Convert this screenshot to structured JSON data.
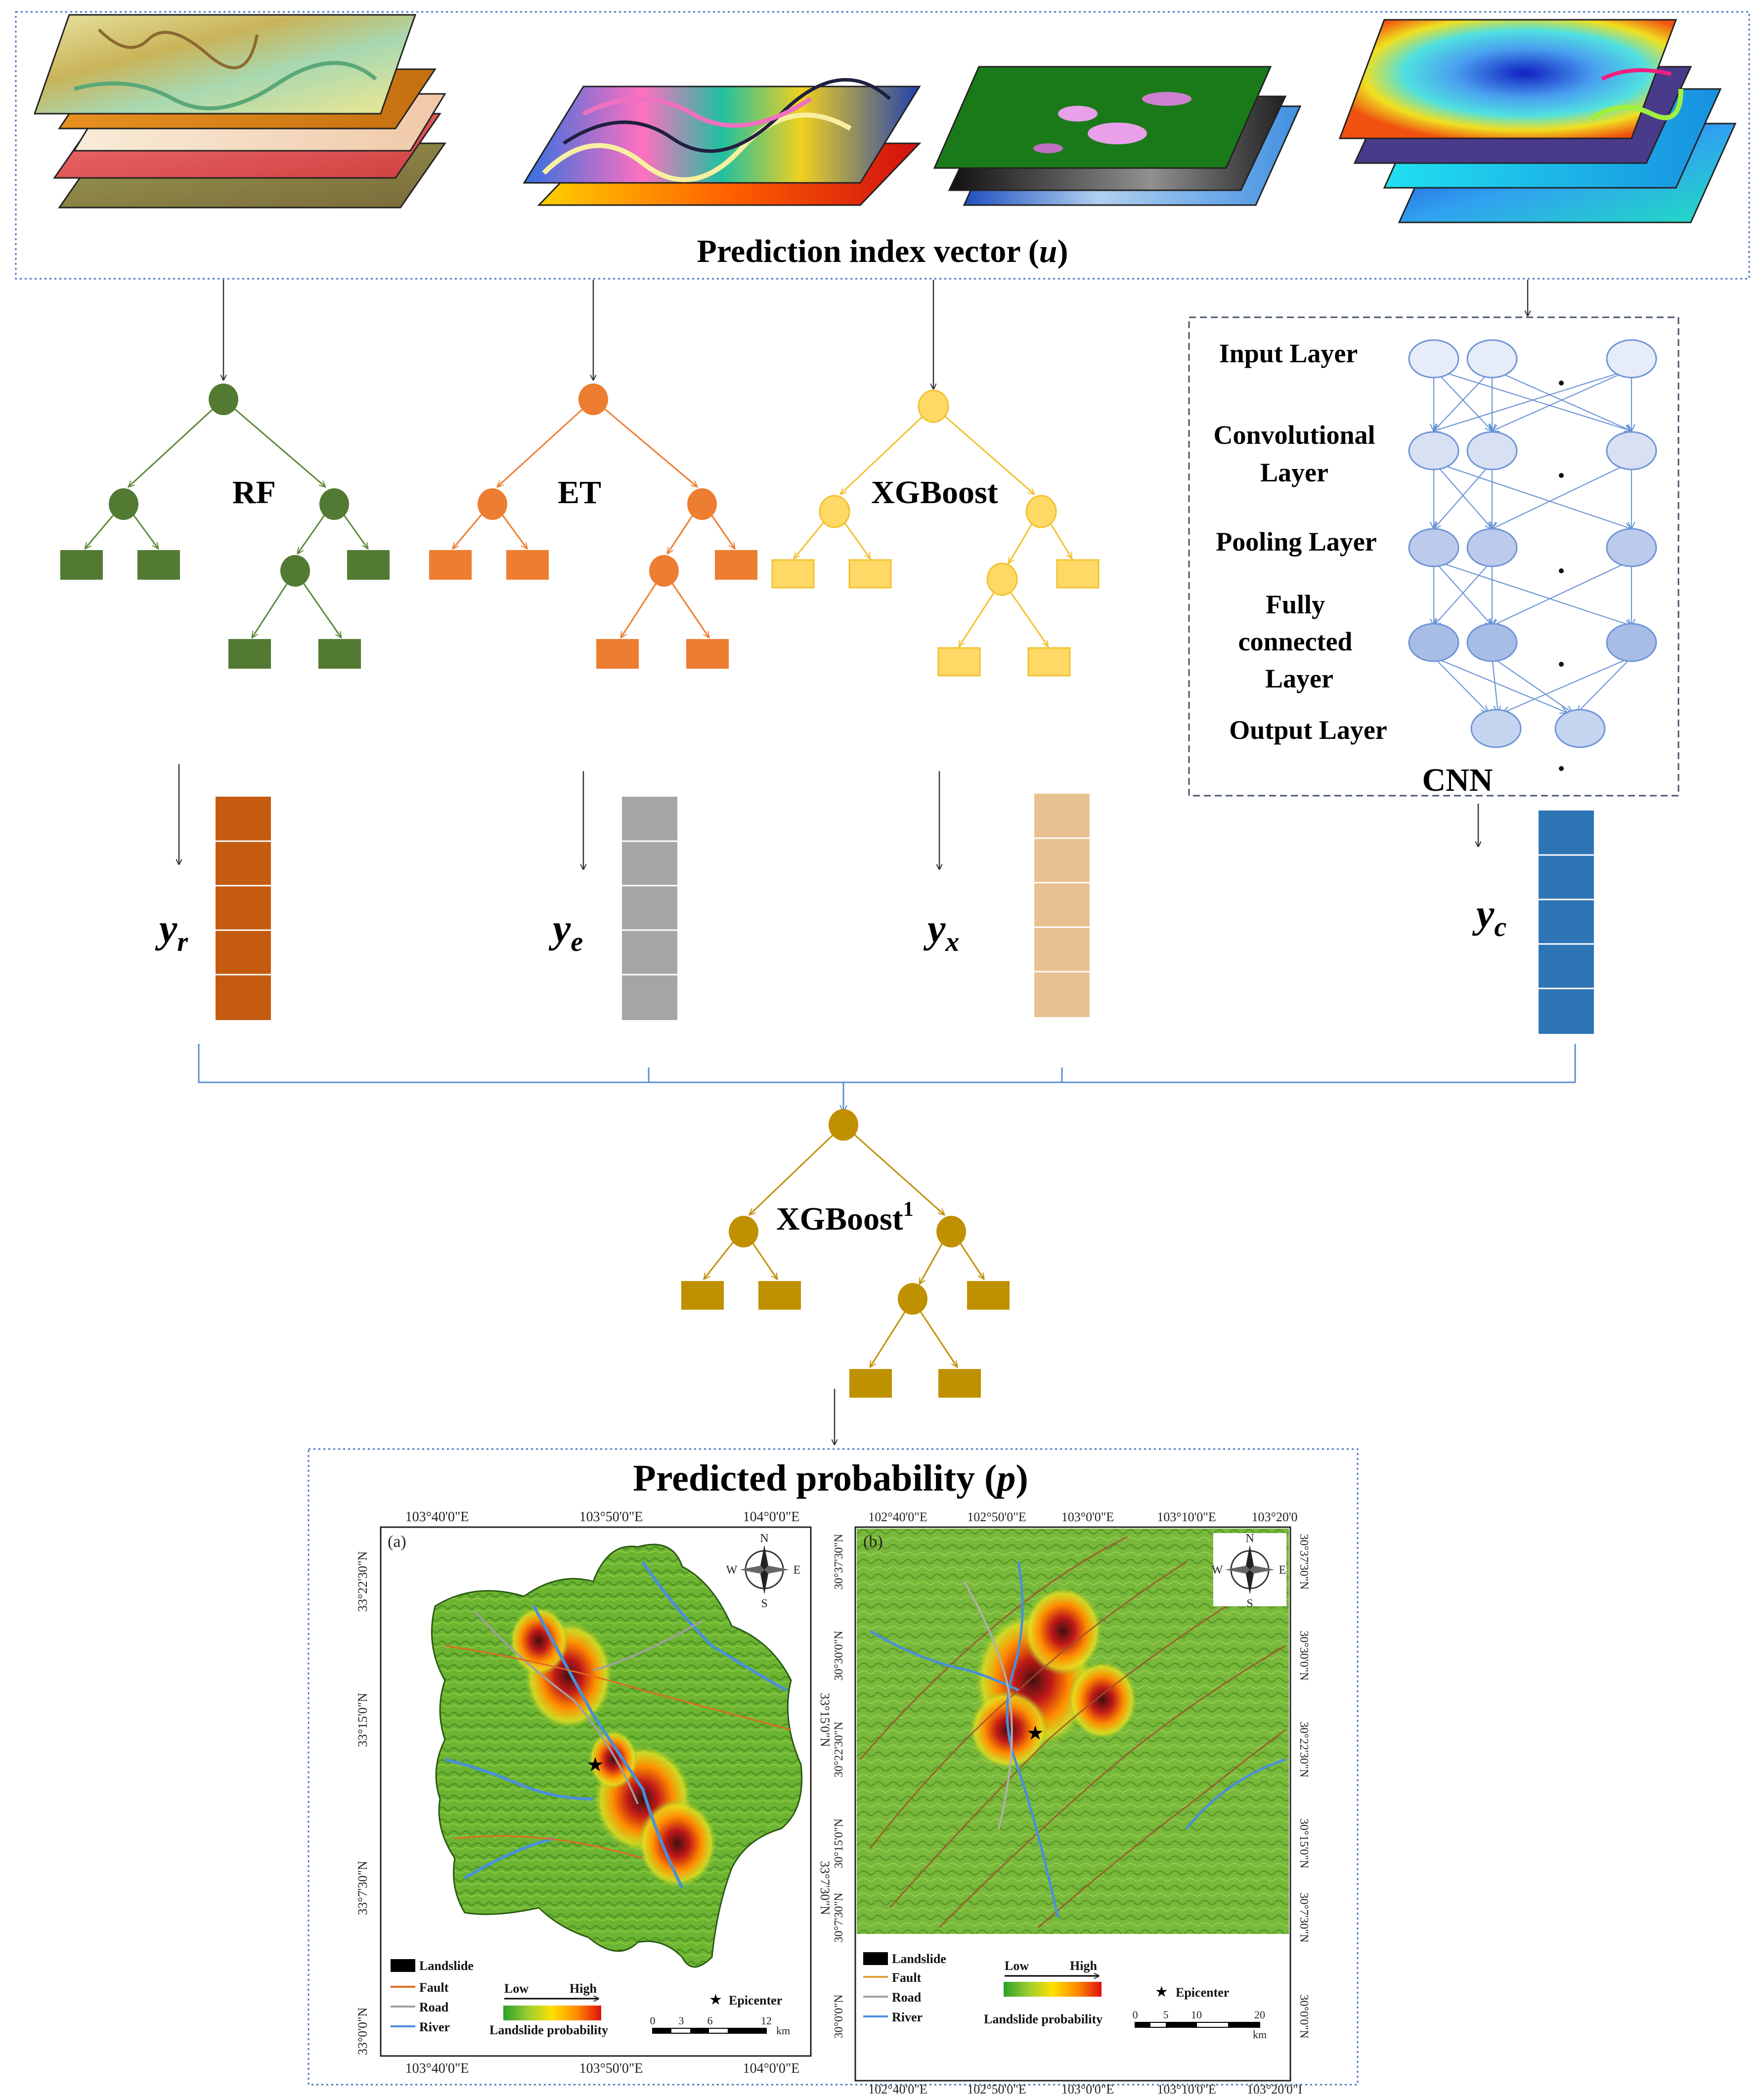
{
  "header": {
    "title": "Prediction index vector (",
    "var": "u",
    "close": ")"
  },
  "models": {
    "rf": "RF",
    "et": "ET",
    "xgb": "XGBoost",
    "meta": "XGBoost",
    "meta_sup": "1"
  },
  "cnn": {
    "title": "CNN",
    "layers": {
      "input": "Input Layer",
      "conv1": "Convolutional",
      "conv2": "Layer",
      "pool": "Pooling Layer",
      "fc1": "Fully",
      "fc2": "connected",
      "fc3": "Layer",
      "output": "Output Layer"
    }
  },
  "outputs": {
    "yr": {
      "base": "y",
      "sub": "r"
    },
    "ye": {
      "base": "y",
      "sub": "e"
    },
    "yx": {
      "base": "y",
      "sub": "x"
    },
    "yc": {
      "base": "y",
      "sub": "c"
    }
  },
  "result": {
    "title": "Predicted probability (",
    "var": "p",
    "close": ")"
  },
  "map_a": {
    "label": "(a)",
    "top_ticks": [
      "103°40'0\"E",
      "103°50'0\"E",
      "104°0'0\"E"
    ],
    "bottom_ticks": [
      "103°40'0\"E",
      "103°50'0\"E",
      "104°0'0\"E"
    ],
    "left_ticks": [
      "33°22'30\"N",
      "33°15'0\"N",
      "33°7'30\"N",
      "33°0'0\"N"
    ],
    "right_ticks": [
      "33°15'0\"N",
      "33°7'30\"N"
    ],
    "legend": {
      "landslide": "Landslide",
      "fault": "Fault",
      "road": "Road",
      "river": "River",
      "low": "Low",
      "high": "High",
      "prob": "Landslide probability",
      "epicenter": "Epicenter"
    },
    "scale": [
      "0",
      "3",
      "6",
      "12"
    ],
    "scale_unit": "km"
  },
  "map_b": {
    "label": "(b)",
    "top_ticks": [
      "102°40'0\"E",
      "102°50'0\"E",
      "103°0'0\"E",
      "103°10'0\"E",
      "103°20'0"
    ],
    "bottom_ticks": [
      "102°40'0\"E",
      "102°50'0\"E",
      "103°0'0\"E",
      "103°10'0\"E",
      "103°20'0\"I"
    ],
    "left_ticks": [
      "30°37'30\"N",
      "30°30'0\"N",
      "30°22'30\"N",
      "30°15'0\"N",
      "30°7'30\"N",
      "30°0'0\"N"
    ],
    "right_ticks": [
      "30°37'30\"N",
      "30°30'0\"N",
      "30°22'30\"N",
      "30°15'0\"N",
      "30°7'30\"N",
      "30°0'0\"N"
    ],
    "legend": {
      "landslide": "Landslide",
      "fault": "Fault",
      "road": "Road",
      "river": "River",
      "low": "Low",
      "high": "High",
      "prob": "Landslide probability",
      "epicenter": "Epicenter"
    },
    "scale": [
      "0",
      "5",
      "10",
      "20"
    ],
    "scale_unit": "km"
  },
  "compass": {
    "n": "N",
    "s": "S",
    "e": "E",
    "w": "W"
  },
  "colors": {
    "rf": "#527a33",
    "et": "#ed7d31",
    "xgb_fill": "#ffd966",
    "xgb_stroke": "#f2c12e",
    "meta": "#bf9000",
    "yr": "#c55a11",
    "ye": "#a5a5a5",
    "yx": "#e8c190",
    "yc": "#2e75b6",
    "cnn_node": "#c9d7ef",
    "dotted": "#4472c4"
  }
}
